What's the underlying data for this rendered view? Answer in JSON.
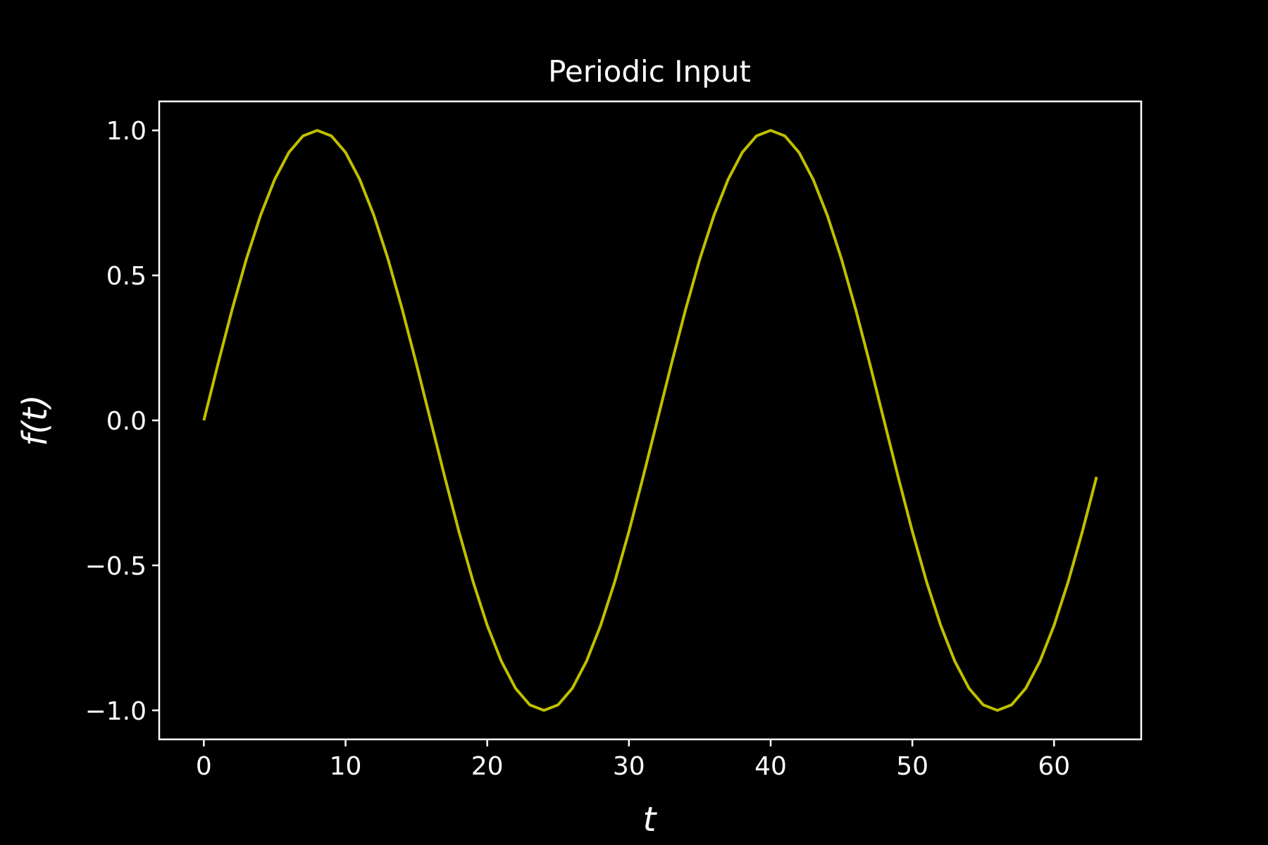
{
  "chart_data": {
    "type": "line",
    "title": "Periodic Input",
    "xlabel": "t",
    "ylabel": "f(t)",
    "xlim": [
      -3.15,
      66.15
    ],
    "ylim": [
      -1.1,
      1.1
    ],
    "grid": false,
    "legend": "none",
    "x_ticks": [
      0,
      10,
      20,
      30,
      40,
      50,
      60
    ],
    "y_ticks": [
      1.0,
      0.5,
      0.0,
      -0.5,
      -1.0
    ],
    "x_tick_labels": [
      "0",
      "10",
      "20",
      "30",
      "40",
      "50",
      "60"
    ],
    "y_tick_labels": [
      "1.0",
      "0.5",
      "0.0",
      "−0.5",
      "−1.0"
    ],
    "series": [
      {
        "color": "#bfbf00",
        "x": [
          0,
          1,
          2,
          3,
          4,
          5,
          6,
          7,
          8,
          9,
          10,
          11,
          12,
          13,
          14,
          15,
          16,
          17,
          18,
          19,
          20,
          21,
          22,
          23,
          24,
          25,
          26,
          27,
          28,
          29,
          30,
          31,
          32,
          33,
          34,
          35,
          36,
          37,
          38,
          39,
          40,
          41,
          42,
          43,
          44,
          45,
          46,
          47,
          48,
          49,
          50,
          51,
          52,
          53,
          54,
          55,
          56,
          57,
          58,
          59,
          60,
          61,
          62,
          63
        ],
        "y": [
          0.0,
          0.195,
          0.383,
          0.556,
          0.707,
          0.831,
          0.924,
          0.981,
          1.0,
          0.981,
          0.924,
          0.831,
          0.707,
          0.556,
          0.383,
          0.195,
          0.0,
          -0.195,
          -0.383,
          -0.556,
          -0.707,
          -0.831,
          -0.924,
          -0.981,
          -1.0,
          -0.981,
          -0.924,
          -0.831,
          -0.707,
          -0.556,
          -0.383,
          -0.195,
          0.0,
          0.195,
          0.383,
          0.556,
          0.707,
          0.831,
          0.924,
          0.981,
          1.0,
          0.981,
          0.924,
          0.831,
          0.707,
          0.556,
          0.383,
          0.195,
          0.0,
          -0.195,
          -0.383,
          -0.556,
          -0.707,
          -0.831,
          -0.924,
          -0.981,
          -1.0,
          -0.981,
          -0.924,
          -0.831,
          -0.707,
          -0.556,
          -0.383,
          -0.195
        ]
      }
    ]
  },
  "colors": {
    "background": "#000000",
    "axes": "#ffffff",
    "text": "#ffffff"
  }
}
